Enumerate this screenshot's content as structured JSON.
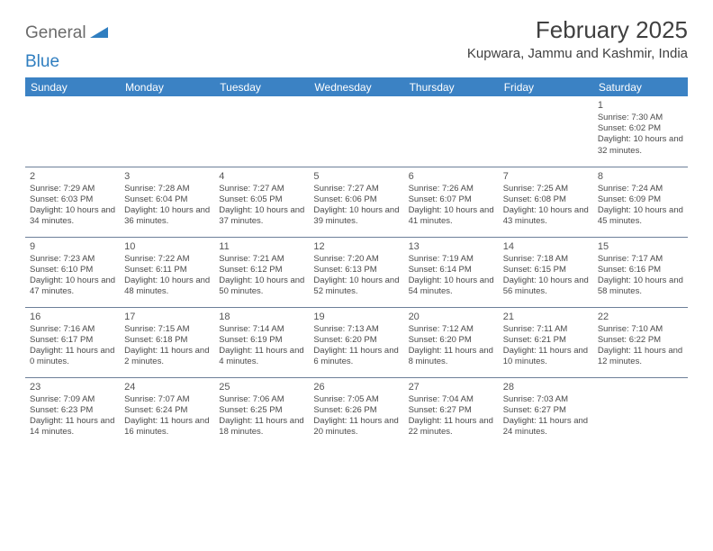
{
  "logo": {
    "word1": "General",
    "word2": "Blue",
    "text_color1": "#6b6b6b",
    "text_color2": "#2f7ec0",
    "icon_color": "#2f7ec0"
  },
  "title": "February 2025",
  "location": "Kupwara, Jammu and Kashmir, India",
  "header_bg": "#3b82c4",
  "header_text_color": "#ffffff",
  "rule_color": "#6d7f99",
  "text_color": "#4a4a4a",
  "weekdays": [
    "Sunday",
    "Monday",
    "Tuesday",
    "Wednesday",
    "Thursday",
    "Friday",
    "Saturday"
  ],
  "labels": {
    "sunrise": "Sunrise:",
    "sunset": "Sunset:",
    "daylight": "Daylight:"
  },
  "weeks": [
    [
      null,
      null,
      null,
      null,
      null,
      null,
      {
        "n": "1",
        "sunrise": "7:30 AM",
        "sunset": "6:02 PM",
        "daylight": "10 hours and 32 minutes."
      }
    ],
    [
      {
        "n": "2",
        "sunrise": "7:29 AM",
        "sunset": "6:03 PM",
        "daylight": "10 hours and 34 minutes."
      },
      {
        "n": "3",
        "sunrise": "7:28 AM",
        "sunset": "6:04 PM",
        "daylight": "10 hours and 36 minutes."
      },
      {
        "n": "4",
        "sunrise": "7:27 AM",
        "sunset": "6:05 PM",
        "daylight": "10 hours and 37 minutes."
      },
      {
        "n": "5",
        "sunrise": "7:27 AM",
        "sunset": "6:06 PM",
        "daylight": "10 hours and 39 minutes."
      },
      {
        "n": "6",
        "sunrise": "7:26 AM",
        "sunset": "6:07 PM",
        "daylight": "10 hours and 41 minutes."
      },
      {
        "n": "7",
        "sunrise": "7:25 AM",
        "sunset": "6:08 PM",
        "daylight": "10 hours and 43 minutes."
      },
      {
        "n": "8",
        "sunrise": "7:24 AM",
        "sunset": "6:09 PM",
        "daylight": "10 hours and 45 minutes."
      }
    ],
    [
      {
        "n": "9",
        "sunrise": "7:23 AM",
        "sunset": "6:10 PM",
        "daylight": "10 hours and 47 minutes."
      },
      {
        "n": "10",
        "sunrise": "7:22 AM",
        "sunset": "6:11 PM",
        "daylight": "10 hours and 48 minutes."
      },
      {
        "n": "11",
        "sunrise": "7:21 AM",
        "sunset": "6:12 PM",
        "daylight": "10 hours and 50 minutes."
      },
      {
        "n": "12",
        "sunrise": "7:20 AM",
        "sunset": "6:13 PM",
        "daylight": "10 hours and 52 minutes."
      },
      {
        "n": "13",
        "sunrise": "7:19 AM",
        "sunset": "6:14 PM",
        "daylight": "10 hours and 54 minutes."
      },
      {
        "n": "14",
        "sunrise": "7:18 AM",
        "sunset": "6:15 PM",
        "daylight": "10 hours and 56 minutes."
      },
      {
        "n": "15",
        "sunrise": "7:17 AM",
        "sunset": "6:16 PM",
        "daylight": "10 hours and 58 minutes."
      }
    ],
    [
      {
        "n": "16",
        "sunrise": "7:16 AM",
        "sunset": "6:17 PM",
        "daylight": "11 hours and 0 minutes."
      },
      {
        "n": "17",
        "sunrise": "7:15 AM",
        "sunset": "6:18 PM",
        "daylight": "11 hours and 2 minutes."
      },
      {
        "n": "18",
        "sunrise": "7:14 AM",
        "sunset": "6:19 PM",
        "daylight": "11 hours and 4 minutes."
      },
      {
        "n": "19",
        "sunrise": "7:13 AM",
        "sunset": "6:20 PM",
        "daylight": "11 hours and 6 minutes."
      },
      {
        "n": "20",
        "sunrise": "7:12 AM",
        "sunset": "6:20 PM",
        "daylight": "11 hours and 8 minutes."
      },
      {
        "n": "21",
        "sunrise": "7:11 AM",
        "sunset": "6:21 PM",
        "daylight": "11 hours and 10 minutes."
      },
      {
        "n": "22",
        "sunrise": "7:10 AM",
        "sunset": "6:22 PM",
        "daylight": "11 hours and 12 minutes."
      }
    ],
    [
      {
        "n": "23",
        "sunrise": "7:09 AM",
        "sunset": "6:23 PM",
        "daylight": "11 hours and 14 minutes."
      },
      {
        "n": "24",
        "sunrise": "7:07 AM",
        "sunset": "6:24 PM",
        "daylight": "11 hours and 16 minutes."
      },
      {
        "n": "25",
        "sunrise": "7:06 AM",
        "sunset": "6:25 PM",
        "daylight": "11 hours and 18 minutes."
      },
      {
        "n": "26",
        "sunrise": "7:05 AM",
        "sunset": "6:26 PM",
        "daylight": "11 hours and 20 minutes."
      },
      {
        "n": "27",
        "sunrise": "7:04 AM",
        "sunset": "6:27 PM",
        "daylight": "11 hours and 22 minutes."
      },
      {
        "n": "28",
        "sunrise": "7:03 AM",
        "sunset": "6:27 PM",
        "daylight": "11 hours and 24 minutes."
      },
      null
    ]
  ]
}
